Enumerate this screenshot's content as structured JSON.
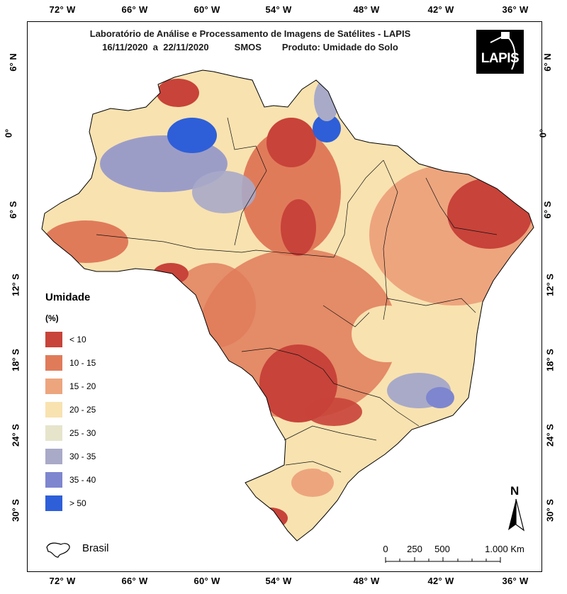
{
  "title": {
    "line1": "Laboratório de Análise e Processamento de Imagens de Satélites - LAPIS",
    "line2": "16/11/2020  a  22/11/2020          SMOS        Produto: Umidade do Solo"
  },
  "logo": {
    "text": "LAPIS"
  },
  "longitude_ticks": [
    "72° W",
    "66° W",
    "60° W",
    "54° W",
    "48° W",
    "42° W",
    "36° W"
  ],
  "latitude_ticks": [
    "6° N",
    "0°",
    "6° S",
    "12° S",
    "18° S",
    "24° S",
    "30° S"
  ],
  "legend": {
    "title": "Umidade",
    "unit": "(%)",
    "items": [
      {
        "label": "< 10",
        "color": "#c8433a"
      },
      {
        "label": "10 - 15",
        "color": "#e07b5a"
      },
      {
        "label": "15 - 20",
        "color": "#eda57e"
      },
      {
        "label": "20 - 25",
        "color": "#f8e2b0"
      },
      {
        "label": "25 - 30",
        "color": "#e6e5cc"
      },
      {
        "label": "30 - 35",
        "color": "#a9aac8"
      },
      {
        "label": "35 - 40",
        "color": "#7e86cf"
      },
      {
        "label": "> 50",
        "color": "#2e5fd8"
      }
    ]
  },
  "country_label": "Brasil",
  "scale_bar": {
    "labels": [
      "0",
      "250",
      "500",
      "1.000 Km"
    ]
  },
  "north_arrow": {
    "label": "N"
  }
}
